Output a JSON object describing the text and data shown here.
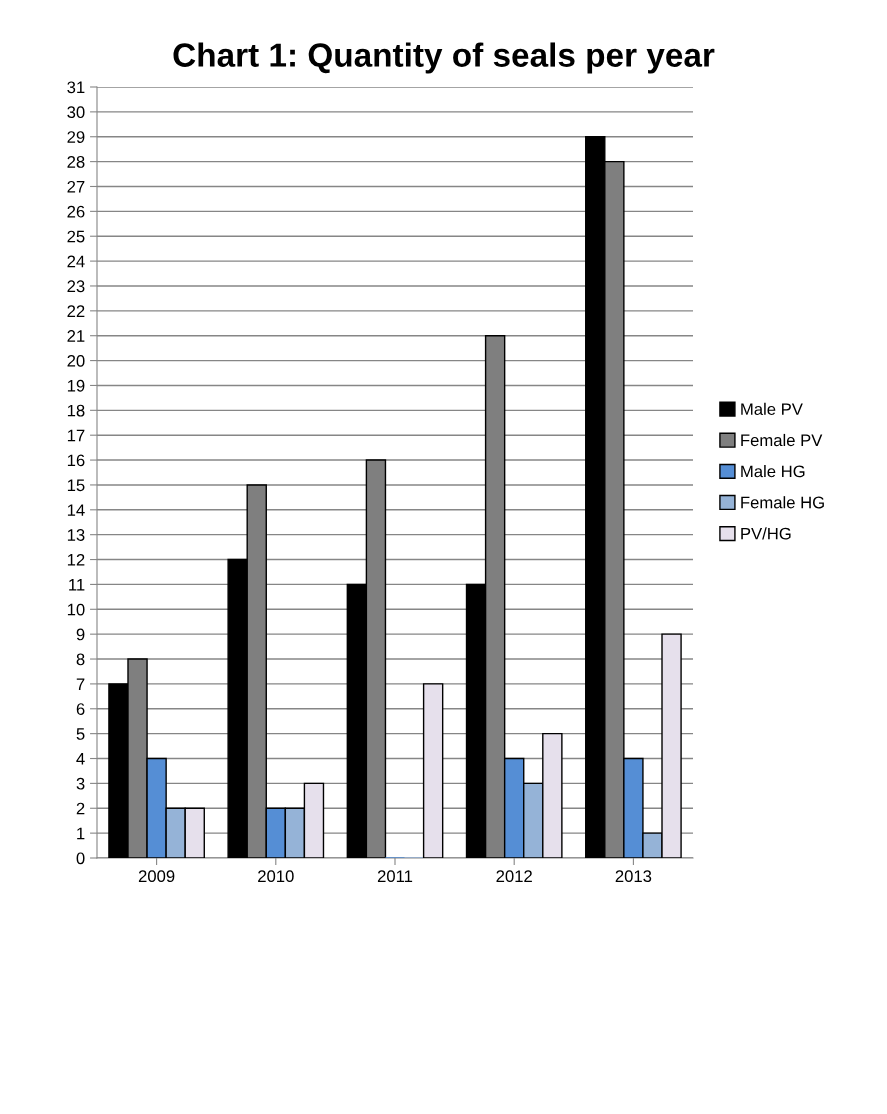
{
  "chart_data": {
    "type": "bar",
    "title": "Chart 1: Quantity of seals per year",
    "categories": [
      "2009",
      "2010",
      "2011",
      "2012",
      "2013"
    ],
    "series": [
      {
        "name": "Male PV",
        "color": "#000000",
        "values": [
          7,
          12,
          11,
          11,
          29
        ]
      },
      {
        "name": "Female PV",
        "color": "#7f7f7f",
        "values": [
          8,
          15,
          16,
          21,
          28
        ]
      },
      {
        "name": "Male HG",
        "color": "#558ed5",
        "values": [
          4,
          2,
          0,
          4,
          4
        ]
      },
      {
        "name": "Female HG",
        "color": "#95b3d7",
        "values": [
          2,
          2,
          0,
          3,
          1
        ]
      },
      {
        "name": "PV/HG",
        "color": "#e6e0ec",
        "values": [
          2,
          3,
          7,
          5,
          9
        ]
      }
    ],
    "ylim": [
      0,
      31
    ],
    "yticks": [
      0,
      1,
      2,
      3,
      4,
      5,
      6,
      7,
      8,
      9,
      10,
      11,
      12,
      13,
      14,
      15,
      16,
      17,
      18,
      19,
      20,
      21,
      22,
      23,
      24,
      25,
      26,
      27,
      28,
      29,
      30,
      31
    ],
    "grid": "y",
    "legend": "right"
  }
}
